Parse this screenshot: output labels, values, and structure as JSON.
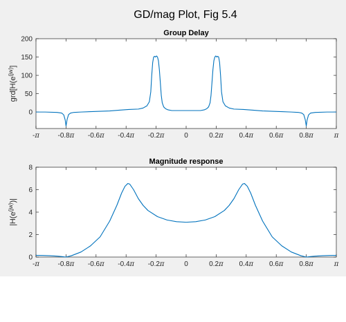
{
  "figure": {
    "suptitle": "GD/mag Plot, Fig 5.4",
    "colors": {
      "figure_bg": "#f0f0f0",
      "axes_bg": "#ffffff",
      "line": "#0072bd",
      "axis": "#262626"
    }
  },
  "chart_data": [
    {
      "type": "line",
      "title": "Group Delay",
      "ylabel_main": "grd[H(e",
      "ylabel_sup": "(jw)",
      "ylabel_end": "]",
      "xlim": [
        -3.14159,
        3.14159
      ],
      "ylim": [
        -45,
        200
      ],
      "x_ticks": [
        {
          "value": -3.14159,
          "coef": "-",
          "pi": "π"
        },
        {
          "value": -2.51327,
          "coef": "-0.8",
          "pi": "π"
        },
        {
          "value": -1.88496,
          "coef": "-0.6",
          "pi": "π"
        },
        {
          "value": -1.25664,
          "coef": "-0.4",
          "pi": "π"
        },
        {
          "value": -0.62832,
          "coef": "-0.2",
          "pi": "π"
        },
        {
          "value": 0,
          "coef": "0",
          "pi": ""
        },
        {
          "value": 0.62832,
          "coef": "0.2",
          "pi": "π"
        },
        {
          "value": 1.25664,
          "coef": "0.4",
          "pi": "π"
        },
        {
          "value": 1.88496,
          "coef": "0.6",
          "pi": "π"
        },
        {
          "value": 2.51327,
          "coef": "0.8",
          "pi": "π"
        },
        {
          "value": 3.14159,
          "coef": "",
          "pi": "π"
        }
      ],
      "y_ticks": [
        "0",
        "50",
        "100",
        "150",
        "200"
      ],
      "y_tick_values": [
        0,
        50,
        100,
        150,
        200
      ],
      "series": [
        {
          "x": [
            -3.1416,
            -2.95,
            -2.7,
            -2.6,
            -2.56,
            -2.53,
            -2.513,
            -2.49,
            -2.46,
            -2.42,
            -2.35,
            -2.2,
            -2.0,
            -1.8,
            -1.6,
            -1.4,
            -1.2,
            -1.0,
            -0.9,
            -0.82,
            -0.77,
            -0.74,
            -0.72,
            -0.7,
            -0.68,
            -0.66,
            -0.64,
            -0.62,
            -0.6,
            -0.58,
            -0.56,
            -0.54,
            -0.52,
            -0.5,
            -0.47,
            -0.43,
            -0.38,
            -0.3,
            -0.2,
            -0.1,
            0,
            0.1,
            0.2,
            0.3,
            0.38,
            0.43,
            0.47,
            0.5,
            0.52,
            0.54,
            0.56,
            0.58,
            0.6,
            0.62,
            0.64,
            0.66,
            0.68,
            0.7,
            0.72,
            0.74,
            0.77,
            0.82,
            0.9,
            1.0,
            1.2,
            1.4,
            1.6,
            1.8,
            2.0,
            2.2,
            2.35,
            2.42,
            2.46,
            2.49,
            2.513,
            2.53,
            2.56,
            2.6,
            2.7,
            2.95,
            3.1416
          ],
          "y": [
            0,
            0,
            -1,
            -3,
            -8,
            -22,
            -38,
            -20,
            -7,
            -3,
            -1,
            0,
            1,
            2,
            3,
            5,
            7,
            8,
            11,
            17,
            28,
            55,
            100,
            135,
            150,
            152,
            150,
            153,
            150,
            140,
            115,
            80,
            45,
            25,
            14,
            9,
            6,
            4,
            4,
            4,
            4,
            4,
            4,
            4,
            6,
            9,
            14,
            25,
            45,
            80,
            115,
            140,
            150,
            153,
            150,
            152,
            150,
            135,
            100,
            55,
            28,
            17,
            11,
            8,
            7,
            5,
            3,
            2,
            1,
            0,
            -1,
            -3,
            -7,
            -20,
            -38,
            -22,
            -8,
            -3,
            -1,
            0,
            0
          ]
        }
      ]
    },
    {
      "type": "line",
      "title": "Magnitude response",
      "ylabel_main": "|H(e",
      "ylabel_sup": "(jw)",
      "ylabel_end": ")|",
      "xlim": [
        -3.14159,
        3.14159
      ],
      "ylim": [
        0,
        8
      ],
      "x_ticks": [
        {
          "value": -3.14159,
          "coef": "-",
          "pi": "π"
        },
        {
          "value": -2.51327,
          "coef": "-0.8",
          "pi": "π"
        },
        {
          "value": -1.88496,
          "coef": "-0.6",
          "pi": "π"
        },
        {
          "value": -1.25664,
          "coef": "-0.4",
          "pi": "π"
        },
        {
          "value": -0.62832,
          "coef": "-0.2",
          "pi": "π"
        },
        {
          "value": 0,
          "coef": "0",
          "pi": ""
        },
        {
          "value": 0.62832,
          "coef": "0.2",
          "pi": "π"
        },
        {
          "value": 1.25664,
          "coef": "0.4",
          "pi": "π"
        },
        {
          "value": 1.88496,
          "coef": "0.6",
          "pi": "π"
        },
        {
          "value": 2.51327,
          "coef": "0.8",
          "pi": "π"
        },
        {
          "value": 3.14159,
          "coef": "",
          "pi": "π"
        }
      ],
      "y_ticks": [
        "0",
        "2",
        "4",
        "6",
        "8"
      ],
      "y_tick_values": [
        0,
        2,
        4,
        6,
        8
      ],
      "series": [
        {
          "x": [
            -3.1416,
            -3.0,
            -2.85,
            -2.7,
            -2.6,
            -2.513,
            -2.4,
            -2.2,
            -2.0,
            -1.8,
            -1.6,
            -1.45,
            -1.35,
            -1.28,
            -1.22,
            -1.18,
            -1.1,
            -1.0,
            -0.9,
            -0.8,
            -0.6,
            -0.4,
            -0.2,
            0,
            0.2,
            0.4,
            0.6,
            0.8,
            0.9,
            1.0,
            1.1,
            1.18,
            1.22,
            1.28,
            1.35,
            1.45,
            1.6,
            1.8,
            2.0,
            2.2,
            2.4,
            2.513,
            2.6,
            2.7,
            2.85,
            3.0,
            3.1416
          ],
          "y": [
            0.15,
            0.14,
            0.12,
            0.08,
            0.04,
            0.0,
            0.12,
            0.45,
            1.0,
            1.8,
            3.2,
            4.6,
            5.7,
            6.3,
            6.55,
            6.5,
            6.0,
            5.2,
            4.6,
            4.15,
            3.6,
            3.3,
            3.15,
            3.1,
            3.15,
            3.3,
            3.6,
            4.15,
            4.6,
            5.2,
            6.0,
            6.5,
            6.55,
            6.3,
            5.7,
            4.6,
            3.2,
            1.8,
            1.0,
            0.45,
            0.12,
            0.0,
            0.04,
            0.08,
            0.12,
            0.14,
            0.15
          ]
        }
      ]
    }
  ]
}
